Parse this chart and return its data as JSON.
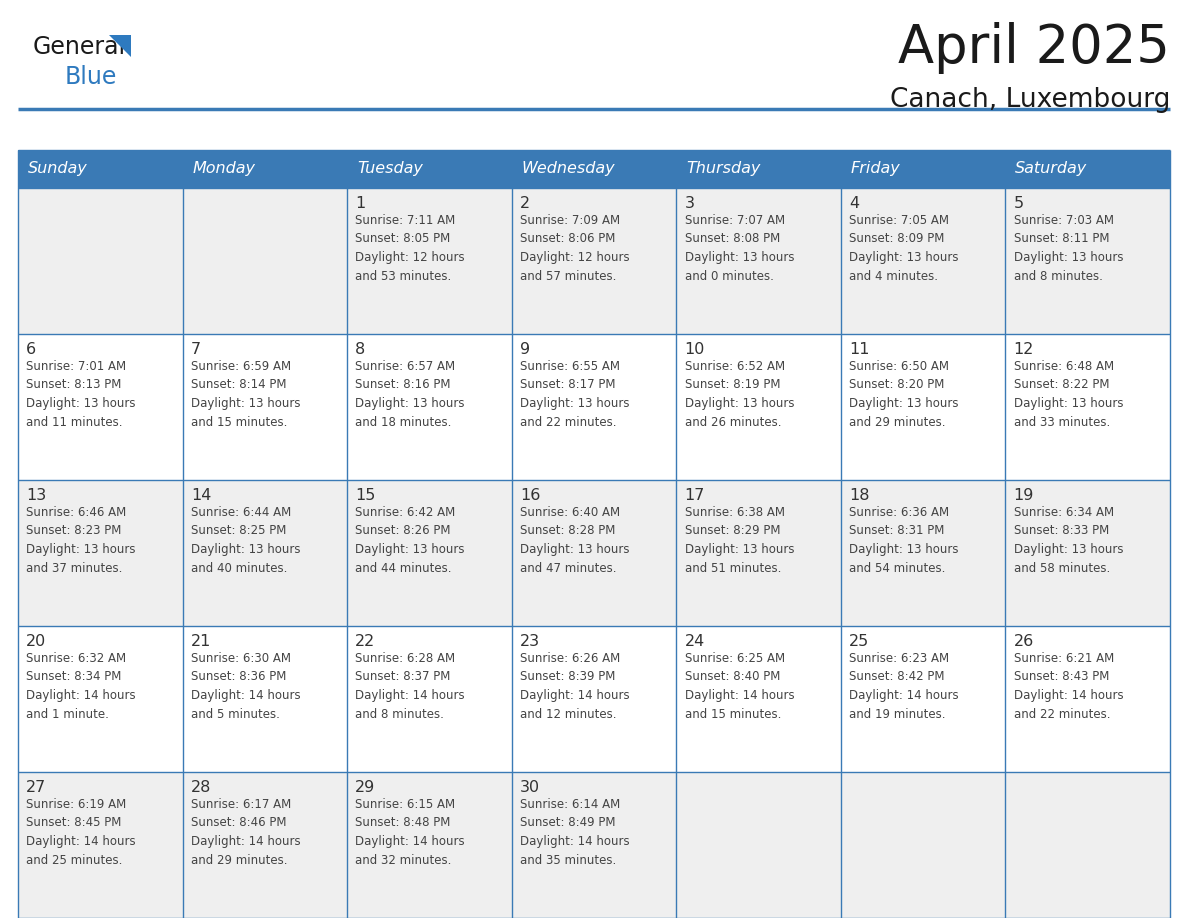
{
  "title": "April 2025",
  "subtitle": "Canach, Luxembourg",
  "header_bg_color": "#3a7ab5",
  "header_text_color": "#ffffff",
  "cell_bg_even": "#efefef",
  "cell_bg_odd": "#ffffff",
  "text_color": "#333333",
  "border_color": "#3a7ab5",
  "days_of_week": [
    "Sunday",
    "Monday",
    "Tuesday",
    "Wednesday",
    "Thursday",
    "Friday",
    "Saturday"
  ],
  "weeks": [
    [
      {
        "day": null,
        "info": null
      },
      {
        "day": null,
        "info": null
      },
      {
        "day": 1,
        "info": "Sunrise: 7:11 AM\nSunset: 8:05 PM\nDaylight: 12 hours\nand 53 minutes."
      },
      {
        "day": 2,
        "info": "Sunrise: 7:09 AM\nSunset: 8:06 PM\nDaylight: 12 hours\nand 57 minutes."
      },
      {
        "day": 3,
        "info": "Sunrise: 7:07 AM\nSunset: 8:08 PM\nDaylight: 13 hours\nand 0 minutes."
      },
      {
        "day": 4,
        "info": "Sunrise: 7:05 AM\nSunset: 8:09 PM\nDaylight: 13 hours\nand 4 minutes."
      },
      {
        "day": 5,
        "info": "Sunrise: 7:03 AM\nSunset: 8:11 PM\nDaylight: 13 hours\nand 8 minutes."
      }
    ],
    [
      {
        "day": 6,
        "info": "Sunrise: 7:01 AM\nSunset: 8:13 PM\nDaylight: 13 hours\nand 11 minutes."
      },
      {
        "day": 7,
        "info": "Sunrise: 6:59 AM\nSunset: 8:14 PM\nDaylight: 13 hours\nand 15 minutes."
      },
      {
        "day": 8,
        "info": "Sunrise: 6:57 AM\nSunset: 8:16 PM\nDaylight: 13 hours\nand 18 minutes."
      },
      {
        "day": 9,
        "info": "Sunrise: 6:55 AM\nSunset: 8:17 PM\nDaylight: 13 hours\nand 22 minutes."
      },
      {
        "day": 10,
        "info": "Sunrise: 6:52 AM\nSunset: 8:19 PM\nDaylight: 13 hours\nand 26 minutes."
      },
      {
        "day": 11,
        "info": "Sunrise: 6:50 AM\nSunset: 8:20 PM\nDaylight: 13 hours\nand 29 minutes."
      },
      {
        "day": 12,
        "info": "Sunrise: 6:48 AM\nSunset: 8:22 PM\nDaylight: 13 hours\nand 33 minutes."
      }
    ],
    [
      {
        "day": 13,
        "info": "Sunrise: 6:46 AM\nSunset: 8:23 PM\nDaylight: 13 hours\nand 37 minutes."
      },
      {
        "day": 14,
        "info": "Sunrise: 6:44 AM\nSunset: 8:25 PM\nDaylight: 13 hours\nand 40 minutes."
      },
      {
        "day": 15,
        "info": "Sunrise: 6:42 AM\nSunset: 8:26 PM\nDaylight: 13 hours\nand 44 minutes."
      },
      {
        "day": 16,
        "info": "Sunrise: 6:40 AM\nSunset: 8:28 PM\nDaylight: 13 hours\nand 47 minutes."
      },
      {
        "day": 17,
        "info": "Sunrise: 6:38 AM\nSunset: 8:29 PM\nDaylight: 13 hours\nand 51 minutes."
      },
      {
        "day": 18,
        "info": "Sunrise: 6:36 AM\nSunset: 8:31 PM\nDaylight: 13 hours\nand 54 minutes."
      },
      {
        "day": 19,
        "info": "Sunrise: 6:34 AM\nSunset: 8:33 PM\nDaylight: 13 hours\nand 58 minutes."
      }
    ],
    [
      {
        "day": 20,
        "info": "Sunrise: 6:32 AM\nSunset: 8:34 PM\nDaylight: 14 hours\nand 1 minute."
      },
      {
        "day": 21,
        "info": "Sunrise: 6:30 AM\nSunset: 8:36 PM\nDaylight: 14 hours\nand 5 minutes."
      },
      {
        "day": 22,
        "info": "Sunrise: 6:28 AM\nSunset: 8:37 PM\nDaylight: 14 hours\nand 8 minutes."
      },
      {
        "day": 23,
        "info": "Sunrise: 6:26 AM\nSunset: 8:39 PM\nDaylight: 14 hours\nand 12 minutes."
      },
      {
        "day": 24,
        "info": "Sunrise: 6:25 AM\nSunset: 8:40 PM\nDaylight: 14 hours\nand 15 minutes."
      },
      {
        "day": 25,
        "info": "Sunrise: 6:23 AM\nSunset: 8:42 PM\nDaylight: 14 hours\nand 19 minutes."
      },
      {
        "day": 26,
        "info": "Sunrise: 6:21 AM\nSunset: 8:43 PM\nDaylight: 14 hours\nand 22 minutes."
      }
    ],
    [
      {
        "day": 27,
        "info": "Sunrise: 6:19 AM\nSunset: 8:45 PM\nDaylight: 14 hours\nand 25 minutes."
      },
      {
        "day": 28,
        "info": "Sunrise: 6:17 AM\nSunset: 8:46 PM\nDaylight: 14 hours\nand 29 minutes."
      },
      {
        "day": 29,
        "info": "Sunrise: 6:15 AM\nSunset: 8:48 PM\nDaylight: 14 hours\nand 32 minutes."
      },
      {
        "day": 30,
        "info": "Sunrise: 6:14 AM\nSunset: 8:49 PM\nDaylight: 14 hours\nand 35 minutes."
      },
      {
        "day": null,
        "info": null
      },
      {
        "day": null,
        "info": null
      },
      {
        "day": null,
        "info": null
      }
    ]
  ],
  "logo_general_color": "#1a1a1a",
  "logo_blue_color": "#2e7abf",
  "logo_triangle_color": "#2e7abf"
}
